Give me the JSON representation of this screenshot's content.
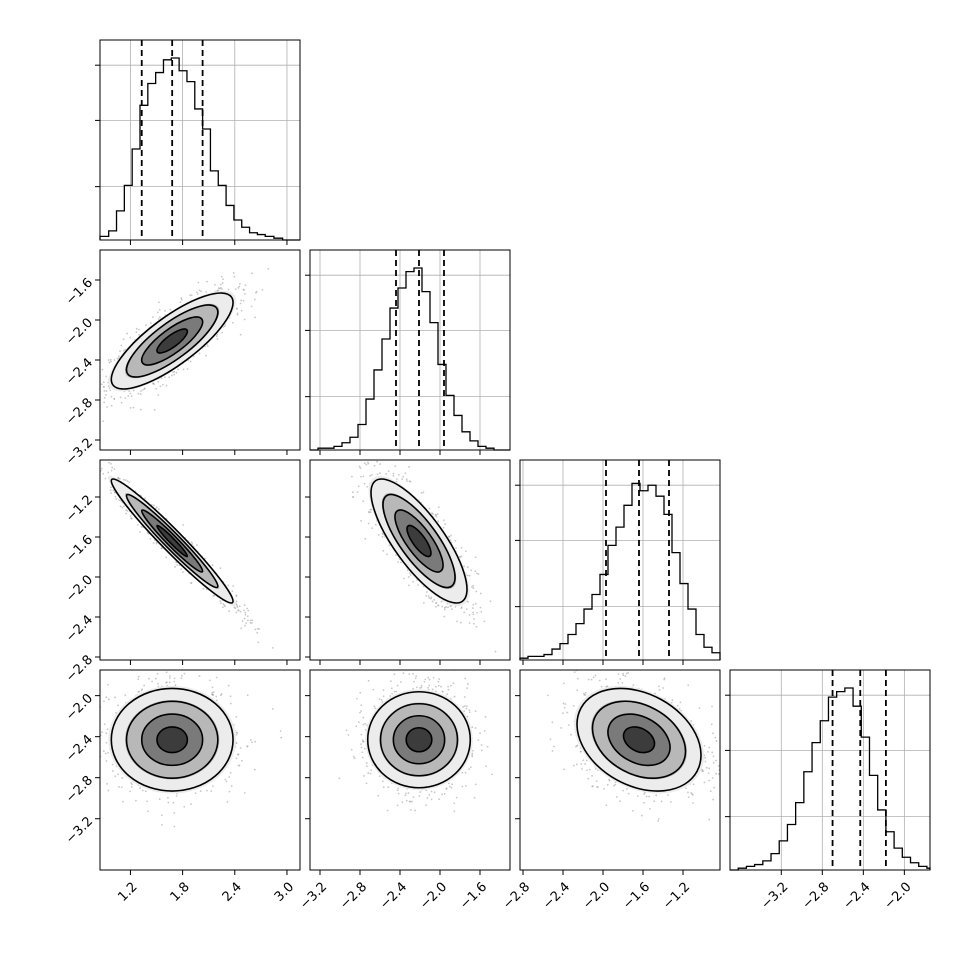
{
  "chart_data": {
    "type": "corner",
    "parameters": 4,
    "colors": {
      "line": "#000000",
      "grid": "#b0b0b0",
      "points": "#9a9a9a",
      "background": "#ffffff"
    },
    "grid": true,
    "tick_labels": {
      "col0_x": [
        "1.2",
        "1.8",
        "2.4",
        "3.0"
      ],
      "col1_x": [
        "−3.2",
        "−2.8",
        "−2.4",
        "−2.0",
        "−1.6"
      ],
      "col2_x": [
        "−2.8",
        "−2.4",
        "−2.0",
        "−1.6",
        "−1.2"
      ],
      "col3_x": [
        "−3.2",
        "−2.8",
        "−2.4",
        "−2.0"
      ],
      "row1_y": [
        "−1.6",
        "−2.0",
        "−2.4",
        "−2.8",
        "−3.2"
      ],
      "row2_y": [
        "−1.2",
        "−1.6",
        "−2.0",
        "−2.4",
        "−2.8"
      ],
      "row3_y": [
        "−2.0",
        "−2.4",
        "−2.8",
        "−3.2"
      ]
    },
    "ranges": {
      "p0": [
        0.85,
        3.15
      ],
      "p1": [
        -3.3,
        -1.3
      ],
      "p2": [
        -2.83,
        -0.83
      ],
      "p3": [
        -3.7,
        -1.75
      ]
    },
    "parameters_summary": [
      {
        "median": 1.68,
        "q16": 1.33,
        "q84": 2.03
      },
      {
        "median": -2.21,
        "q16": -2.44,
        "q84": -1.96
      },
      {
        "median": -1.64,
        "q16": -1.97,
        "q84": -1.34
      },
      {
        "median": -2.43,
        "q16": -2.7,
        "q84": -2.18
      }
    ],
    "histograms": [
      {
        "param": "p0",
        "edges": [
          0.85,
          0.95,
          1.04,
          1.13,
          1.22,
          1.31,
          1.4,
          1.49,
          1.58,
          1.67,
          1.76,
          1.85,
          1.94,
          2.03,
          2.12,
          2.21,
          2.3,
          2.39,
          2.48,
          2.57,
          2.66,
          2.75,
          2.85,
          2.95,
          3.05,
          3.15
        ],
        "counts": [
          0.02,
          0.05,
          0.16,
          0.3,
          0.5,
          0.74,
          0.86,
          0.92,
          0.99,
          1.0,
          0.93,
          0.87,
          0.72,
          0.61,
          0.38,
          0.3,
          0.19,
          0.11,
          0.07,
          0.04,
          0.03,
          0.02,
          0.01,
          0.0,
          0.0
        ]
      },
      {
        "param": "p1",
        "edges": [
          -3.3,
          -3.22,
          -3.14,
          -3.06,
          -2.98,
          -2.9,
          -2.82,
          -2.74,
          -2.66,
          -2.58,
          -2.5,
          -2.42,
          -2.34,
          -2.26,
          -2.18,
          -2.1,
          -2.02,
          -1.94,
          -1.86,
          -1.78,
          -1.7,
          -1.62,
          -1.54,
          -1.46,
          -1.38,
          -1.3
        ],
        "counts": [
          0.0,
          0.01,
          0.01,
          0.02,
          0.04,
          0.07,
          0.14,
          0.28,
          0.44,
          0.61,
          0.78,
          0.89,
          0.98,
          1.0,
          0.87,
          0.7,
          0.47,
          0.3,
          0.19,
          0.1,
          0.05,
          0.02,
          0.01,
          0.0,
          0.0
        ]
      },
      {
        "param": "p2",
        "edges": [
          -2.83,
          -2.75,
          -2.67,
          -2.59,
          -2.51,
          -2.43,
          -2.35,
          -2.27,
          -2.19,
          -2.11,
          -2.03,
          -1.95,
          -1.87,
          -1.79,
          -1.71,
          -1.63,
          -1.55,
          -1.47,
          -1.39,
          -1.31,
          -1.23,
          -1.15,
          -1.07,
          -0.99,
          -0.91,
          -0.83
        ],
        "counts": [
          0.01,
          0.02,
          0.02,
          0.03,
          0.06,
          0.09,
          0.14,
          0.2,
          0.28,
          0.36,
          0.47,
          0.63,
          0.73,
          0.85,
          0.97,
          0.93,
          0.96,
          0.9,
          0.8,
          0.59,
          0.42,
          0.28,
          0.14,
          0.07,
          0.04
        ]
      },
      {
        "param": "p3",
        "edges": [
          -3.7,
          -3.62,
          -3.54,
          -3.46,
          -3.38,
          -3.3,
          -3.22,
          -3.14,
          -3.06,
          -2.98,
          -2.9,
          -2.82,
          -2.74,
          -2.66,
          -2.58,
          -2.5,
          -2.42,
          -2.34,
          -2.26,
          -2.18,
          -2.1,
          -2.02,
          -1.94,
          -1.86,
          -1.78,
          -1.75
        ],
        "counts": [
          0.0,
          0.01,
          0.02,
          0.03,
          0.05,
          0.09,
          0.16,
          0.25,
          0.37,
          0.54,
          0.7,
          0.82,
          0.95,
          0.98,
          1.0,
          0.9,
          0.73,
          0.52,
          0.33,
          0.21,
          0.12,
          0.07,
          0.04,
          0.02,
          0.01
        ]
      }
    ],
    "pairs": [
      {
        "x": "p0",
        "y": "p1",
        "center": [
          1.68,
          -2.21
        ],
        "sd": [
          0.35,
          0.24
        ],
        "rho": 0.8
      },
      {
        "x": "p0",
        "y": "p2",
        "center": [
          1.68,
          -1.64
        ],
        "sd": [
          0.35,
          0.31
        ],
        "rho": -0.97
      },
      {
        "x": "p1",
        "y": "p2",
        "center": [
          -2.21,
          -1.64
        ],
        "sd": [
          0.24,
          0.31
        ],
        "rho": -0.78
      },
      {
        "x": "p0",
        "y": "p3",
        "center": [
          1.68,
          -2.43
        ],
        "sd": [
          0.35,
          0.25
        ],
        "rho": 0.0
      },
      {
        "x": "p1",
        "y": "p3",
        "center": [
          -2.21,
          -2.43
        ],
        "sd": [
          0.24,
          0.25
        ],
        "rho": 0.0
      },
      {
        "x": "p2",
        "y": "p3",
        "center": [
          -1.64,
          -2.43
        ],
        "sd": [
          0.31,
          0.25
        ],
        "rho": -0.3
      }
    ]
  }
}
